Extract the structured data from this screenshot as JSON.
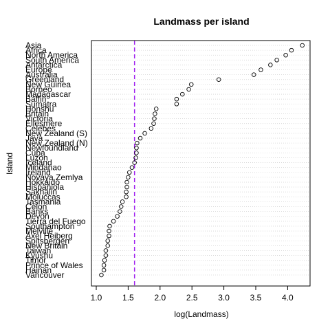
{
  "chart_data": {
    "type": "scatter",
    "title": "Landmass per island",
    "xlabel": "log(Landmass)",
    "ylabel": "Island",
    "xlim": [
      1.0,
      4.3
    ],
    "xticks": [
      "1.0",
      "1.5",
      "2.0",
      "2.5",
      "3.0",
      "3.5",
      "4.0"
    ],
    "xtick_values": [
      1.0,
      1.5,
      2.0,
      2.5,
      3.0,
      3.5,
      4.0
    ],
    "grid": "horizontal dotted",
    "reference_line": {
      "x": 1.6,
      "color": "#a020f0",
      "style": "dashed"
    },
    "point_color": "#000000",
    "categories": [
      "Asia",
      "Africa",
      "North America",
      "South America",
      "Antarctica",
      "Europe",
      "Australia",
      "Greenland",
      "New Guinea",
      "Borneo",
      "Madagascar",
      "Baffin",
      "Sumatra",
      "Honshu",
      "Britain",
      "Victoria",
      "Ellesmere",
      "Celebes",
      "New Zealand (S)",
      "Java",
      "New Zealand (N)",
      "Newfoundland",
      "Cuba",
      "Luzon",
      "Iceland",
      "Mindanao",
      "Ireland",
      "Novaya Zemlya",
      "Hokkaido",
      "Hispaniola",
      "Sakhalin",
      "Moluccas",
      "Tasmania",
      "Celon",
      "Banks",
      "Devon",
      "Tierra del Fuego",
      "Southampton",
      "Melville",
      "Axel Heiberg",
      "Spitsbergen",
      "New Britain",
      "Taiwan",
      "Kyushu",
      "Timor",
      "Prince of Wales",
      "Hainan",
      "Vancouver"
    ],
    "values": [
      4.23,
      4.06,
      3.97,
      3.83,
      3.73,
      3.58,
      3.47,
      2.92,
      2.49,
      2.45,
      2.35,
      2.26,
      2.26,
      1.94,
      1.92,
      1.91,
      1.9,
      1.86,
      1.76,
      1.69,
      1.64,
      1.63,
      1.63,
      1.62,
      1.6,
      1.56,
      1.52,
      1.5,
      1.48,
      1.48,
      1.47,
      1.47,
      1.41,
      1.39,
      1.37,
      1.33,
      1.27,
      1.21,
      1.2,
      1.2,
      1.18,
      1.18,
      1.15,
      1.15,
      1.13,
      1.12,
      1.12,
      1.08
    ]
  }
}
